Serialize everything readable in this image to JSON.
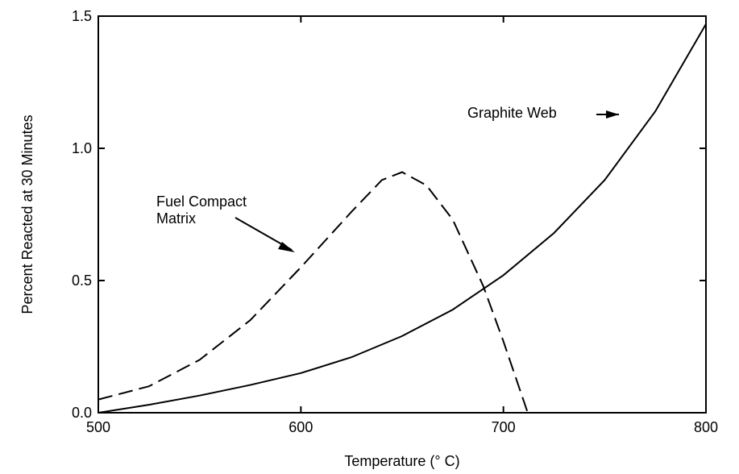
{
  "chart_data": {
    "type": "line",
    "x_label": "Temperature (° C)",
    "y_label": "Percent Reacted at 30 Minutes",
    "xlim": [
      500,
      800
    ],
    "xticks": [
      500,
      600,
      700,
      800
    ],
    "ylim": [
      0,
      1.5
    ],
    "yticks": [
      {
        "value": 0,
        "label": "0.0"
      },
      {
        "value": 0.5,
        "label": "0.5"
      },
      {
        "value": 1.0,
        "label": "1.0"
      },
      {
        "value": 1.5,
        "label": "1.5"
      }
    ],
    "series": [
      {
        "name": "Graphite Web",
        "color": "#000000",
        "dash": false,
        "x": [
          500,
          525,
          550,
          575,
          600,
          625,
          650,
          675,
          700,
          725,
          750,
          775,
          800
        ],
        "values": [
          0,
          0.03,
          0.065,
          0.105,
          0.15,
          0.21,
          0.29,
          0.39,
          0.52,
          0.68,
          0.88,
          1.14,
          1.47
        ]
      },
      {
        "name": "Fuel Compact Matrix",
        "color": "#000000",
        "dash": true,
        "x": [
          500,
          525,
          550,
          575,
          600,
          625,
          640,
          650,
          662,
          675,
          690,
          700,
          712
        ],
        "values": [
          0.05,
          0.1,
          0.2,
          0.35,
          0.55,
          0.76,
          0.88,
          0.91,
          0.86,
          0.73,
          0.48,
          0.27,
          0.0
        ]
      }
    ]
  }
}
